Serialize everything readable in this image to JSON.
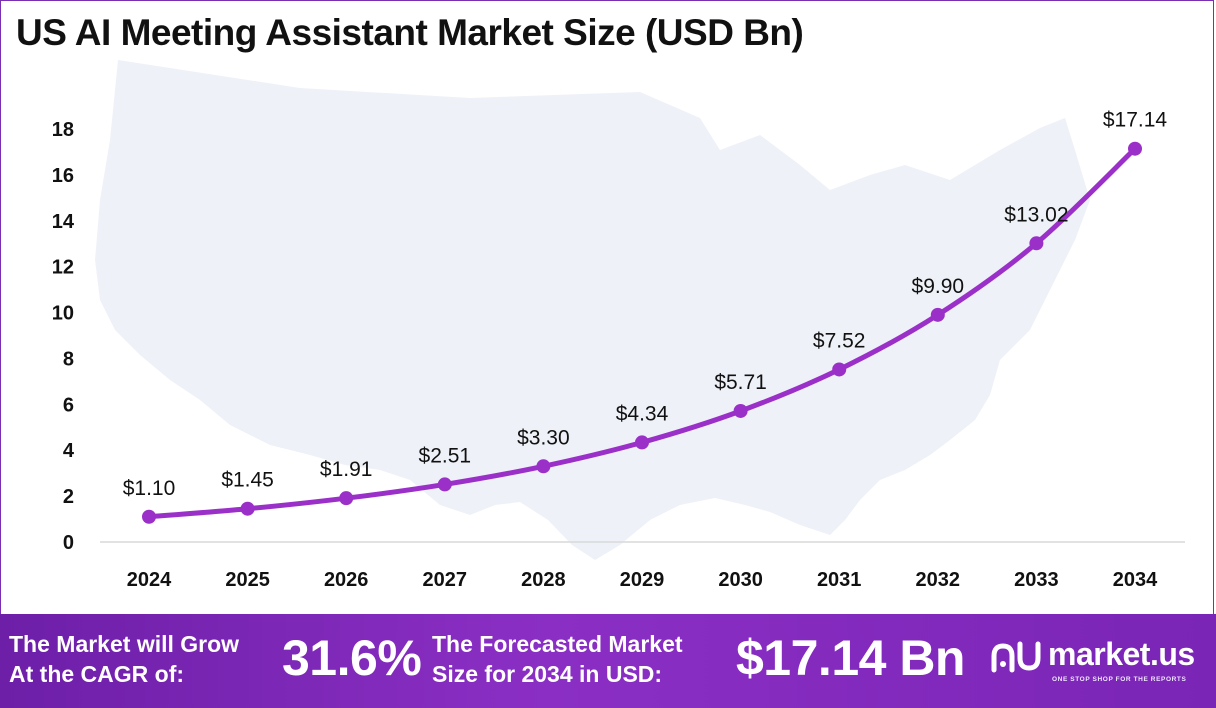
{
  "title": "US AI Meeting Assistant Market Size (USD Bn)",
  "chart_data": {
    "type": "line",
    "title": "US AI Meeting Assistant Market Size (USD Bn)",
    "categories": [
      "2024",
      "2025",
      "2026",
      "2027",
      "2028",
      "2029",
      "2030",
      "2031",
      "2032",
      "2033",
      "2034"
    ],
    "values": [
      1.1,
      1.45,
      1.91,
      2.51,
      3.3,
      4.34,
      5.71,
      7.52,
      9.9,
      13.02,
      17.14
    ],
    "data_labels": [
      "$1.10",
      "$1.45",
      "$1.91",
      "$2.51",
      "$3.30",
      "$4.34",
      "$5.71",
      "$7.52",
      "$9.90",
      "$13.02",
      "$17.14"
    ],
    "ylim": [
      0,
      18
    ],
    "yticks": [
      "0",
      "2",
      "4",
      "6",
      "8",
      "10",
      "12",
      "14",
      "16",
      "18"
    ],
    "xlabel": "",
    "ylabel": "",
    "grid": false,
    "line_color": "#9b30c8",
    "background_motif": "us-map"
  },
  "footer": {
    "cagr_label_line1": "The Market will Grow",
    "cagr_label_line2": "At the CAGR of:",
    "cagr_value": "31.6%",
    "forecast_label_line1": "The Forecasted Market",
    "forecast_label_line2": "Size for 2034 in USD:",
    "forecast_value": "$17.14 Bn",
    "brand_name": "market.us",
    "brand_tagline": "ONE STOP SHOP FOR THE REPORTS",
    "background_color": "#7a25b6"
  }
}
